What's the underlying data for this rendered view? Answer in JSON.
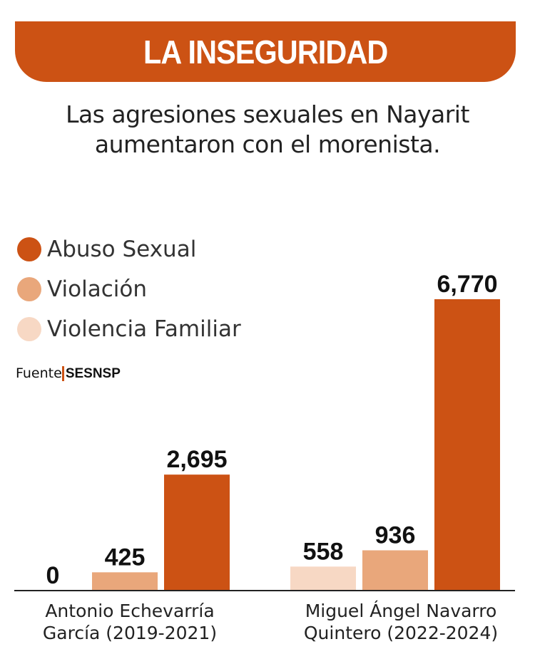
{
  "header": {
    "title": "LA INSEGURIDAD",
    "subtitle_line1": "Las agresiones sexuales en Nayarit",
    "subtitle_line2": "aumentaron con el morenista."
  },
  "source": {
    "label": "Fuente",
    "name": "SESNSP"
  },
  "chart_data": {
    "type": "bar",
    "categories": [
      "Antonio Echevarría García (2019-2021)",
      "Miguel Ángel Navarro Quintero (2022-2024)"
    ],
    "category_lines": [
      [
        "Antonio Echevarría",
        "García (2019-2021)"
      ],
      [
        "Miguel Ángel Navarro",
        "Quintero (2022-2024)"
      ]
    ],
    "series": [
      {
        "name": "Violencia Familiar",
        "color": "#f7d8c4",
        "values": [
          0,
          558
        ],
        "labels": [
          "0",
          "558"
        ]
      },
      {
        "name": "Violación",
        "color": "#e9a77b",
        "values": [
          425,
          936
        ],
        "labels": [
          "425",
          "936"
        ]
      },
      {
        "name": "Abuso Sexual",
        "color": "#cc5214",
        "values": [
          2695,
          6770
        ],
        "labels": [
          "2,695",
          "6,770"
        ]
      }
    ],
    "legend_order": [
      2,
      1,
      0
    ],
    "legend_placement": "top-left",
    "grid": false,
    "ylim": [
      0,
      6770
    ]
  }
}
